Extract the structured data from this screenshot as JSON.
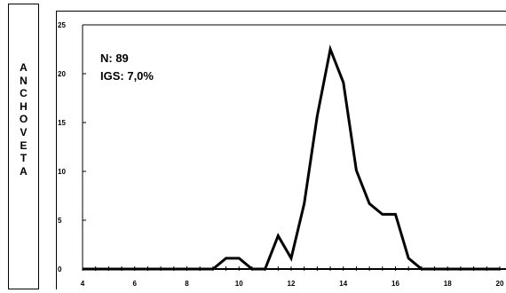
{
  "species_label": "ANCHOVETA",
  "annotations": {
    "n": "N: 89",
    "igs": "IGS: 7,0%"
  },
  "chart_data": {
    "type": "line",
    "x": [
      4,
      4.5,
      5,
      5.5,
      6,
      6.5,
      7,
      7.5,
      8,
      8.5,
      9,
      9.5,
      10,
      10.5,
      11,
      11.5,
      12,
      12.5,
      13,
      13.5,
      14,
      14.5,
      15,
      15.5,
      16,
      16.5,
      17,
      17.5,
      18,
      18.5,
      19,
      19.5,
      20
    ],
    "series": [
      {
        "values": [
          0,
          0,
          0,
          0,
          0,
          0,
          0,
          0,
          0,
          0,
          0,
          1.1,
          1.1,
          0,
          0,
          3.4,
          1.1,
          6.7,
          15.7,
          22.5,
          19.1,
          10.1,
          6.7,
          5.6,
          5.6,
          1.1,
          0,
          0,
          0,
          0,
          0,
          0,
          0
        ]
      }
    ],
    "xlim": [
      4,
      20
    ],
    "ylim": [
      0,
      25
    ],
    "xticks": [
      4,
      6,
      8,
      10,
      12,
      14,
      16,
      18,
      20
    ],
    "yticks": [
      0,
      5,
      10,
      15,
      20,
      25
    ],
    "xminor_step": 0.5,
    "grid": false,
    "legend": "none",
    "title": "",
    "xlabel": "",
    "ylabel": "",
    "line_color": "#000000"
  }
}
